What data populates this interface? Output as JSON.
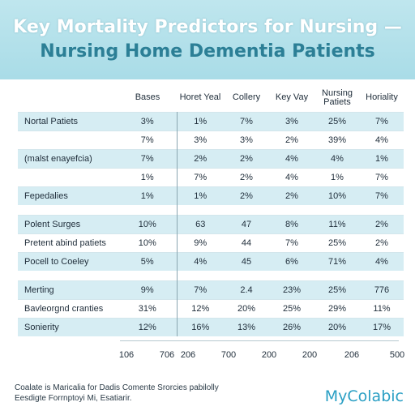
{
  "chart_data": {
    "type": "table",
    "title_line1": "Key Mortality Predictors for Nursing —",
    "title_line2": "Nursing Home Dementia Patients",
    "columns": [
      "",
      "Bases",
      "Horet Yeal",
      "Collery",
      "Key Vay",
      "Nursing Patiets",
      "Horiality"
    ],
    "rows": [
      {
        "label": "Nortal Patiets",
        "values": [
          "3%",
          "1%",
          "7%",
          "3%",
          "25%",
          "7%"
        ],
        "shade": true
      },
      {
        "label": "",
        "values": [
          "7%",
          "3%",
          "3%",
          "2%",
          "39%",
          "4%"
        ],
        "shade": false
      },
      {
        "label": "(malst enayefcia)",
        "values": [
          "7%",
          "2%",
          "2%",
          "4%",
          "4%",
          "1%"
        ],
        "shade": true
      },
      {
        "label": "",
        "values": [
          "1%",
          "7%",
          "2%",
          "4%",
          "1%",
          "7%"
        ],
        "shade": false
      },
      {
        "label": "Fepedalies",
        "values": [
          "1%",
          "1%",
          "2%",
          "2%",
          "10%",
          "7%"
        ],
        "shade": true
      },
      {
        "gap": true
      },
      {
        "label": "Polent Surges",
        "values": [
          "10%",
          "63",
          "47",
          "8%",
          "11%",
          "2%"
        ],
        "shade": true
      },
      {
        "label": "Pretent abind patiets",
        "values": [
          "10%",
          "9%",
          "44",
          "7%",
          "25%",
          "2%"
        ],
        "shade": false
      },
      {
        "label": "Pocell to Coeley",
        "values": [
          "5%",
          "4%",
          "45",
          "6%",
          "71%",
          "4%"
        ],
        "shade": true
      },
      {
        "gap": true
      },
      {
        "label": "Merting",
        "values": [
          "9%",
          "7%",
          "2.4",
          "23%",
          "25%",
          "776"
        ],
        "shade": true
      },
      {
        "label": "Bavleorgnd cranties",
        "values": [
          "31%",
          "12%",
          "20%",
          "25%",
          "29%",
          "11%"
        ],
        "shade": false
      },
      {
        "label": "Sonierity",
        "values": [
          "12%",
          "16%",
          "13%",
          "26%",
          "20%",
          "17%"
        ],
        "shade": true
      }
    ],
    "x_ticks": [
      "106",
      "706",
      "206",
      "700",
      "200",
      "200",
      "206",
      "500"
    ]
  },
  "footer": {
    "note_line1": "Coalate is Maricalia for Dadis Comente Srorcies pabilolly",
    "note_line2": "Eesdigte Forrnptoyi Mi, Esatiarir."
  },
  "brand": "MyColabic",
  "colors": {
    "header": "#bfe6ee",
    "shade": "#d6edf3",
    "brand": "#2a9fc4"
  }
}
